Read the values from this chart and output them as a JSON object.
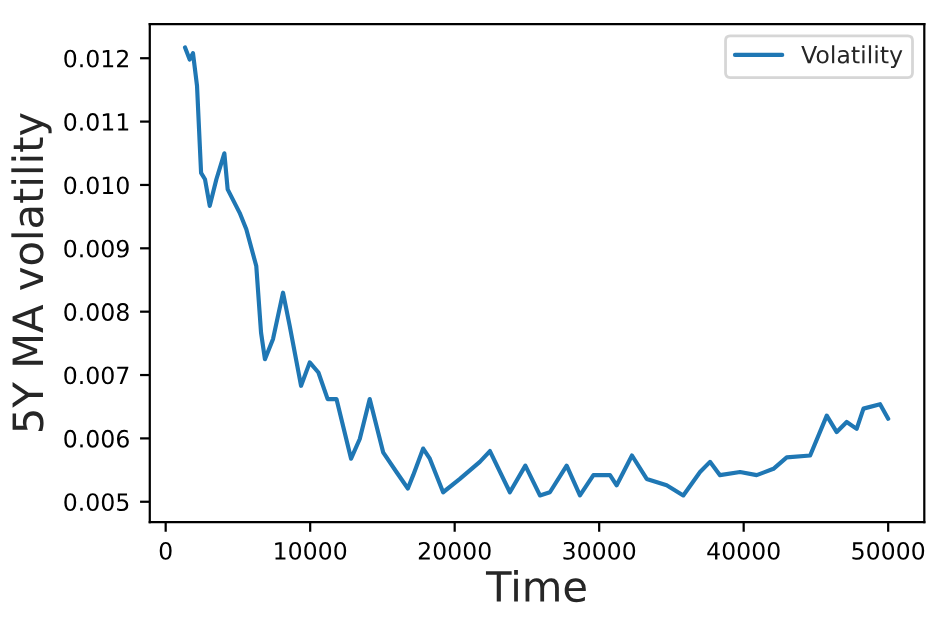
{
  "chart_data": {
    "type": "line",
    "xlabel": "Time",
    "ylabel": "5Y MA volatility",
    "x": [
      1340,
      1660,
      1890,
      2170,
      2450,
      2720,
      3050,
      3510,
      4060,
      4290,
      5120,
      5580,
      6270,
      6600,
      6870,
      7430,
      8120,
      8580,
      9370,
      9970,
      10570,
      11210,
      11820,
      12830,
      13430,
      14120,
      15050,
      15970,
      16760,
      17130,
      17820,
      18280,
      19200,
      20360,
      21740,
      22440,
      23820,
      24890,
      25900,
      26590,
      27750,
      28670,
      29600,
      30750,
      31210,
      32270,
      33290,
      34670,
      35820,
      36980,
      37670,
      38360,
      39750,
      40900,
      42060,
      42980,
      44600,
      45750,
      46440,
      47130,
      47820,
      48290,
      49440,
      50000
    ],
    "series": [
      {
        "name": "Volatility",
        "color": "#1f77b4",
        "values": [
          0.01217,
          0.01198,
          0.01208,
          0.01156,
          0.01019,
          0.01009,
          0.00967,
          0.01009,
          0.0105,
          0.00993,
          0.00956,
          0.0093,
          0.00872,
          0.00767,
          0.00725,
          0.00757,
          0.0083,
          0.00778,
          0.00683,
          0.0072,
          0.00704,
          0.00662,
          0.00662,
          0.00568,
          0.00599,
          0.00662,
          0.00578,
          0.00547,
          0.00521,
          0.00542,
          0.00584,
          0.00568,
          0.00515,
          0.00536,
          0.00563,
          0.0058,
          0.00515,
          0.00557,
          0.0051,
          0.00515,
          0.00557,
          0.0051,
          0.00542,
          0.00542,
          0.00526,
          0.00573,
          0.00536,
          0.00526,
          0.0051,
          0.00547,
          0.00563,
          0.00542,
          0.00547,
          0.00542,
          0.00552,
          0.0057,
          0.00573,
          0.00636,
          0.0061,
          0.00626,
          0.00615,
          0.00647,
          0.00654,
          0.00631
        ]
      }
    ],
    "xlim": [
      -1100,
      52500
    ],
    "ylim": [
      0.00468,
      0.01254
    ],
    "xticks": [
      0,
      10000,
      20000,
      30000,
      40000,
      50000
    ],
    "yticks": [
      {
        "value": 0.005,
        "label": "0.005"
      },
      {
        "value": 0.006,
        "label": "0.006"
      },
      {
        "value": 0.007,
        "label": "0.007"
      },
      {
        "value": 0.008,
        "label": "0.008"
      },
      {
        "value": 0.009,
        "label": "0.009"
      },
      {
        "value": 0.01,
        "label": "0.010"
      },
      {
        "value": 0.011,
        "label": "0.011"
      },
      {
        "value": 0.012,
        "label": "0.012"
      }
    ],
    "legend": "top right",
    "grid": false
  }
}
